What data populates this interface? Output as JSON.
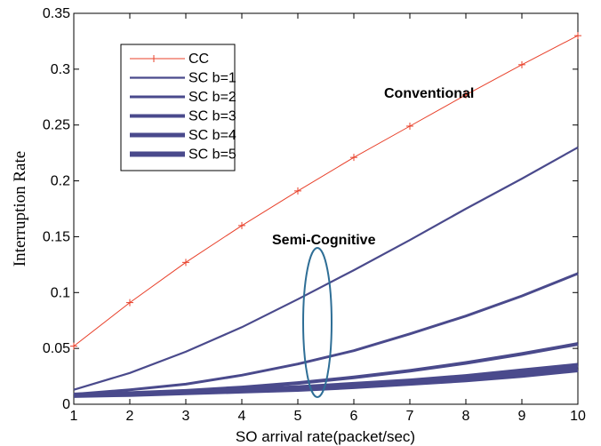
{
  "chart_data": {
    "type": "line",
    "xlabel": "SO arrival rate(packet/sec)",
    "ylabel": "Interruption Rate",
    "xlim": [
      1,
      10
    ],
    "ylim": [
      0,
      0.35
    ],
    "x_ticks": [
      "1",
      "2",
      "3",
      "4",
      "5",
      "6",
      "7",
      "8",
      "9",
      "10"
    ],
    "y_ticks": [
      "0",
      "0.05",
      "0.1",
      "0.15",
      "0.2",
      "0.25",
      "0.3",
      "0.35"
    ],
    "x": [
      1,
      2,
      3,
      4,
      5,
      6,
      7,
      8,
      9,
      10
    ],
    "series": [
      {
        "name": "CC",
        "color": "#e8402a",
        "marker": "plus",
        "values": [
          0.052,
          0.091,
          0.127,
          0.16,
          0.191,
          0.221,
          0.249,
          0.277,
          0.304,
          0.33
        ]
      },
      {
        "name": "SC b=1",
        "color": "#4a4a8c",
        "values": [
          0.013,
          0.028,
          0.047,
          0.069,
          0.094,
          0.12,
          0.147,
          0.175,
          0.202,
          0.23
        ]
      },
      {
        "name": "SC b=2",
        "color": "#4a4a8c",
        "values": [
          0.009,
          0.013,
          0.018,
          0.026,
          0.036,
          0.048,
          0.063,
          0.079,
          0.097,
          0.117
        ]
      },
      {
        "name": "SC b=3",
        "color": "#4a4a8c",
        "values": [
          0.008,
          0.01,
          0.012,
          0.015,
          0.019,
          0.024,
          0.03,
          0.037,
          0.045,
          0.054
        ]
      },
      {
        "name": "SC b=4",
        "color": "#4a4a8c",
        "values": [
          0.008,
          0.0095,
          0.011,
          0.013,
          0.015,
          0.018,
          0.021,
          0.025,
          0.03,
          0.035
        ]
      },
      {
        "name": "SC b=5",
        "color": "#4a4a8c",
        "values": [
          0.008,
          0.009,
          0.0105,
          0.012,
          0.0135,
          0.016,
          0.019,
          0.022,
          0.026,
          0.031
        ]
      }
    ],
    "annotations": [
      {
        "text": "Conventional",
        "x": 7.8,
        "y": 0.29
      },
      {
        "text": "Semi-Cognitive",
        "x": 5.4,
        "y": 0.142
      }
    ],
    "legend_position": "top-left",
    "grid": false
  }
}
